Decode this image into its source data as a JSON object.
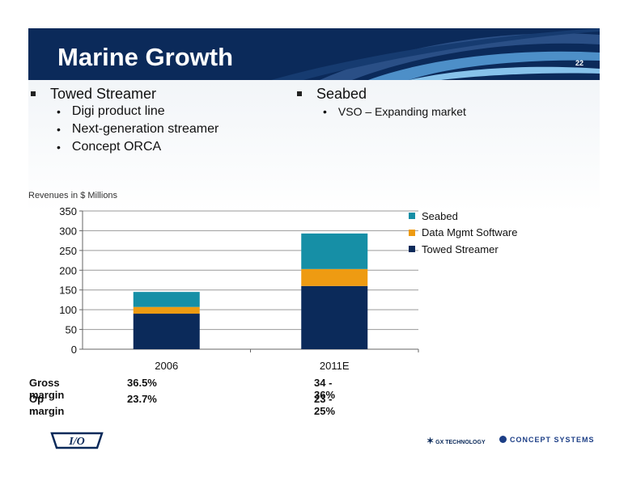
{
  "slide": {
    "title": "Marine Growth",
    "page_number": "22"
  },
  "bullets_left": {
    "heading": "Towed Streamer",
    "items": [
      "Digi product line",
      "Next-generation streamer",
      "Concept ORCA"
    ]
  },
  "bullets_right": {
    "heading": "Seabed",
    "items": [
      "VSO – Expanding market"
    ]
  },
  "chart_data": {
    "type": "bar",
    "stacked": true,
    "title": "",
    "ylabel": "Revenues in $ Millions",
    "xlabel": "",
    "categories": [
      "2006",
      "2011E"
    ],
    "ylim": [
      0,
      350
    ],
    "yticks": [
      0,
      50,
      100,
      150,
      200,
      250,
      300,
      350
    ],
    "grid": true,
    "legend_position": "right",
    "series": [
      {
        "name": "Towed Streamer",
        "values": [
          90,
          160
        ],
        "color": "#0b2a5a"
      },
      {
        "name": "Data Mgmt Software",
        "values": [
          17,
          43
        ],
        "color": "#ee9b12"
      },
      {
        "name": "Seabed",
        "values": [
          38,
          90
        ],
        "color": "#168fa6"
      }
    ]
  },
  "legend_order": [
    "Seabed",
    "Data Mgmt Software",
    "Towed Streamer"
  ],
  "metrics": [
    {
      "label": "Gross margin",
      "values": [
        "36.5%",
        "34 - 36%"
      ]
    },
    {
      "label": "Op margin",
      "values": [
        "23.7%",
        "23 - 25%"
      ]
    }
  ],
  "footer": {
    "logo_text": "I/O",
    "partner1": "GX TECHNOLOGY",
    "partner2": "CONCEPT SYSTEMS"
  }
}
